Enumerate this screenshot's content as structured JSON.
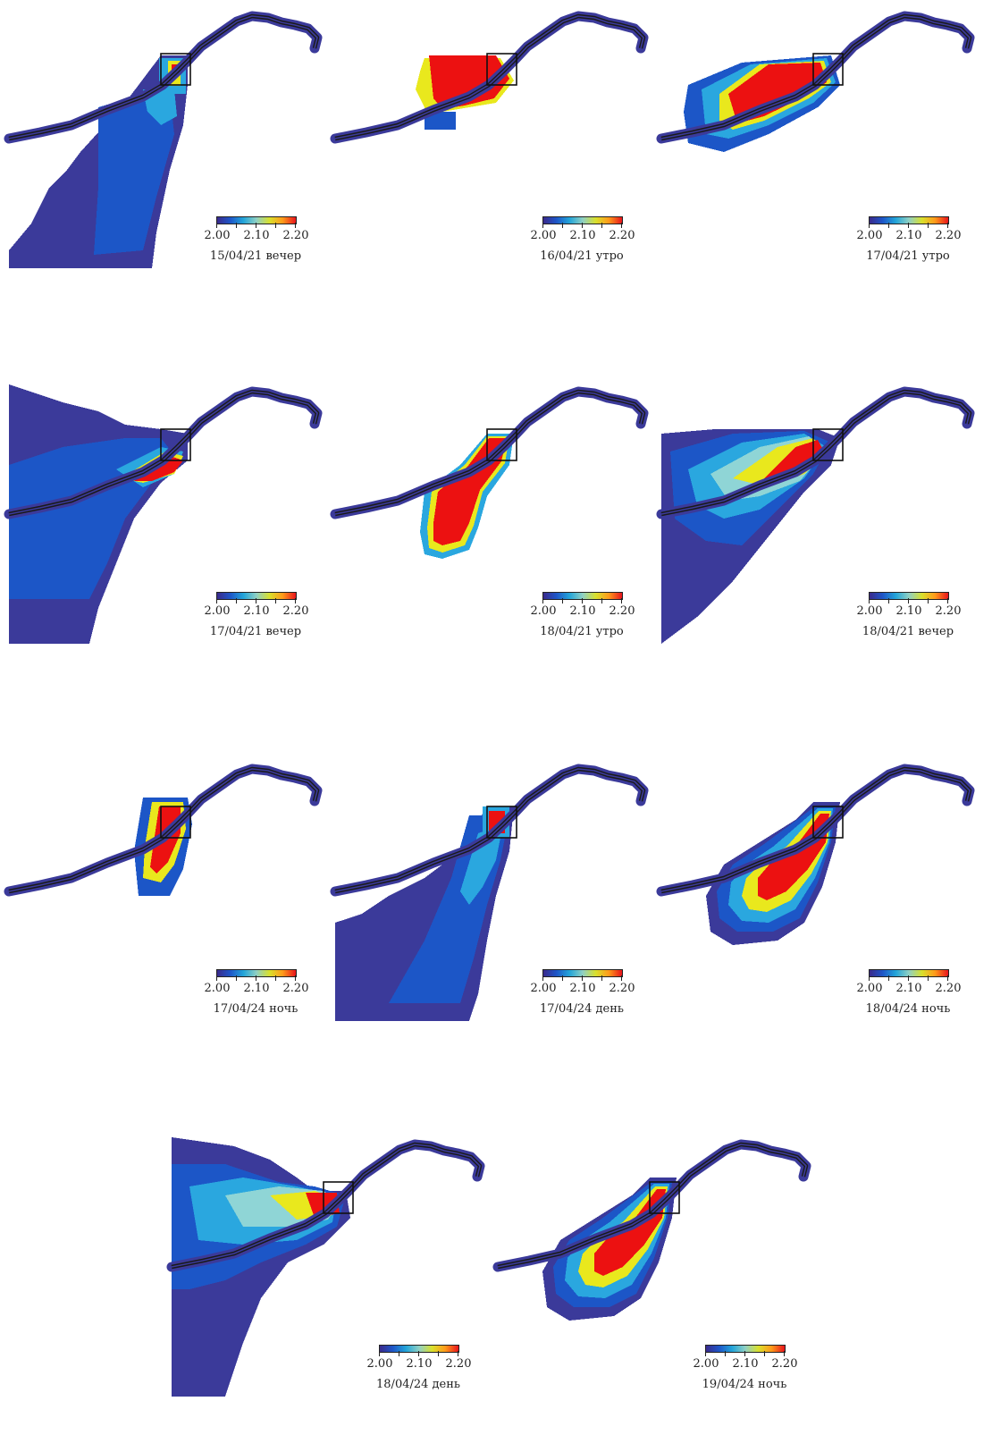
{
  "colorbar": {
    "ticks": [
      "2.00",
      "2.10",
      "2.20"
    ],
    "colors": [
      "#3a2a8c",
      "#1e56c8",
      "#23a5d9",
      "#8fd0c4",
      "#d9e02c",
      "#ff9a1a",
      "#e8141c"
    ]
  },
  "colors": {
    "base": "#3b3a9a",
    "blue": "#1c56c7",
    "cyan": "#2aa7df",
    "pale": "#8fd5d6",
    "yellow": "#e9e81d",
    "red": "#ec1111",
    "river": "#3b3a9a",
    "line": "#1a1a1a"
  },
  "panels": [
    {
      "caption": "15/04/21 вечер",
      "plume": "low-wide"
    },
    {
      "caption": "16/04/21 утро",
      "plume": "high-north"
    },
    {
      "caption": "17/04/21 утро",
      "plume": "high-band"
    },
    {
      "caption": "17/04/21 вечер",
      "plume": "low-west"
    },
    {
      "caption": "18/04/21 утро",
      "plume": "high-south"
    },
    {
      "caption": "18/04/21 вечер",
      "plume": "mixed-west"
    },
    {
      "caption": "17/04/24 ночь",
      "plume": "high-small"
    },
    {
      "caption": "17/04/24 день",
      "plume": "low-south"
    },
    {
      "caption": "18/04/24 ночь",
      "plume": "high-southwest"
    },
    {
      "caption": "18/04/24 день",
      "plume": "mixed-wide-west"
    },
    {
      "caption": "19/04/24 ночь",
      "plume": "high-southwest"
    }
  ]
}
